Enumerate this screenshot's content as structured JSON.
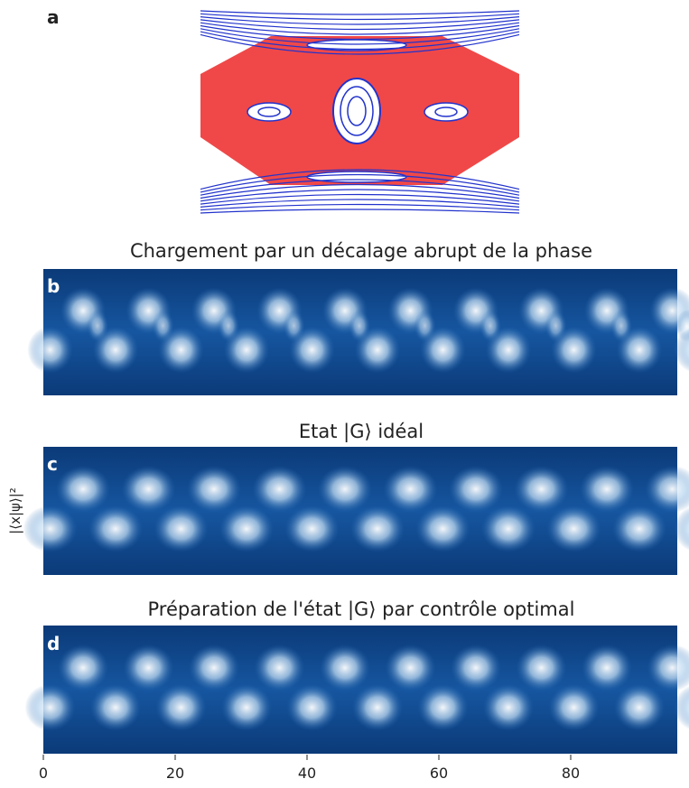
{
  "panels": [
    {
      "label": "a"
    },
    {
      "label": "b",
      "title": "Chargement par un décalage abrupt de la phase"
    },
    {
      "label": "c",
      "title": "Etat |G⟩ idéal"
    },
    {
      "label": "d",
      "title": "Préparation de l'état |G⟩ par contrôle optimal"
    }
  ],
  "y_axis_label": "|⟨x|ψ⟩|²",
  "x_axis": {
    "ticks": [
      0,
      20,
      40,
      60,
      80
    ]
  }
}
